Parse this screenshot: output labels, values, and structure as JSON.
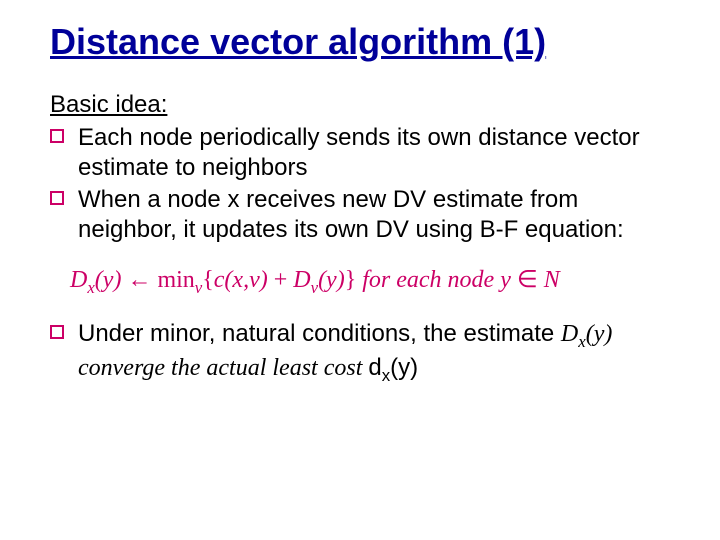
{
  "title": "Distance vector algorithm (1)",
  "subhead": "Basic idea:",
  "bullets": [
    "Each node periodically sends its own distance vector estimate to neighbors",
    "When a node x receives new DV estimate from neighbor, it updates its own DV using B-F equation:"
  ],
  "equation": {
    "lhs_base": "D",
    "lhs_sub": "x",
    "lhs_arg": "(y)",
    "arrow": " ← ",
    "min_text": "min",
    "min_sub": "v",
    "brace_open": "{",
    "c_term": "c(x,v)",
    "plus": " + ",
    "dv_base": "D",
    "dv_sub": "v",
    "dv_arg": "(y)",
    "brace_close": "}",
    "tail": "   for each node y ",
    "in_sym": "∈",
    "set": " N"
  },
  "last_bullet": {
    "pre": "Under minor, natural conditions, the estimate ",
    "dxy_base": "D",
    "dxy_sub": "x",
    "dxy_arg": "(y)",
    "mid": " converge the actual least cost ",
    "d_small": "d",
    "d_sub": "x",
    "d_arg": "(y)"
  },
  "colors": {
    "title": "#000099",
    "body": "#000000",
    "accent": "#cc0066",
    "background": "#ffffff"
  },
  "typography": {
    "title_fontsize": 36,
    "body_fontsize": 24,
    "equation_fontsize": 24,
    "body_family": "Comic Sans MS",
    "equation_family": "Times New Roman"
  }
}
